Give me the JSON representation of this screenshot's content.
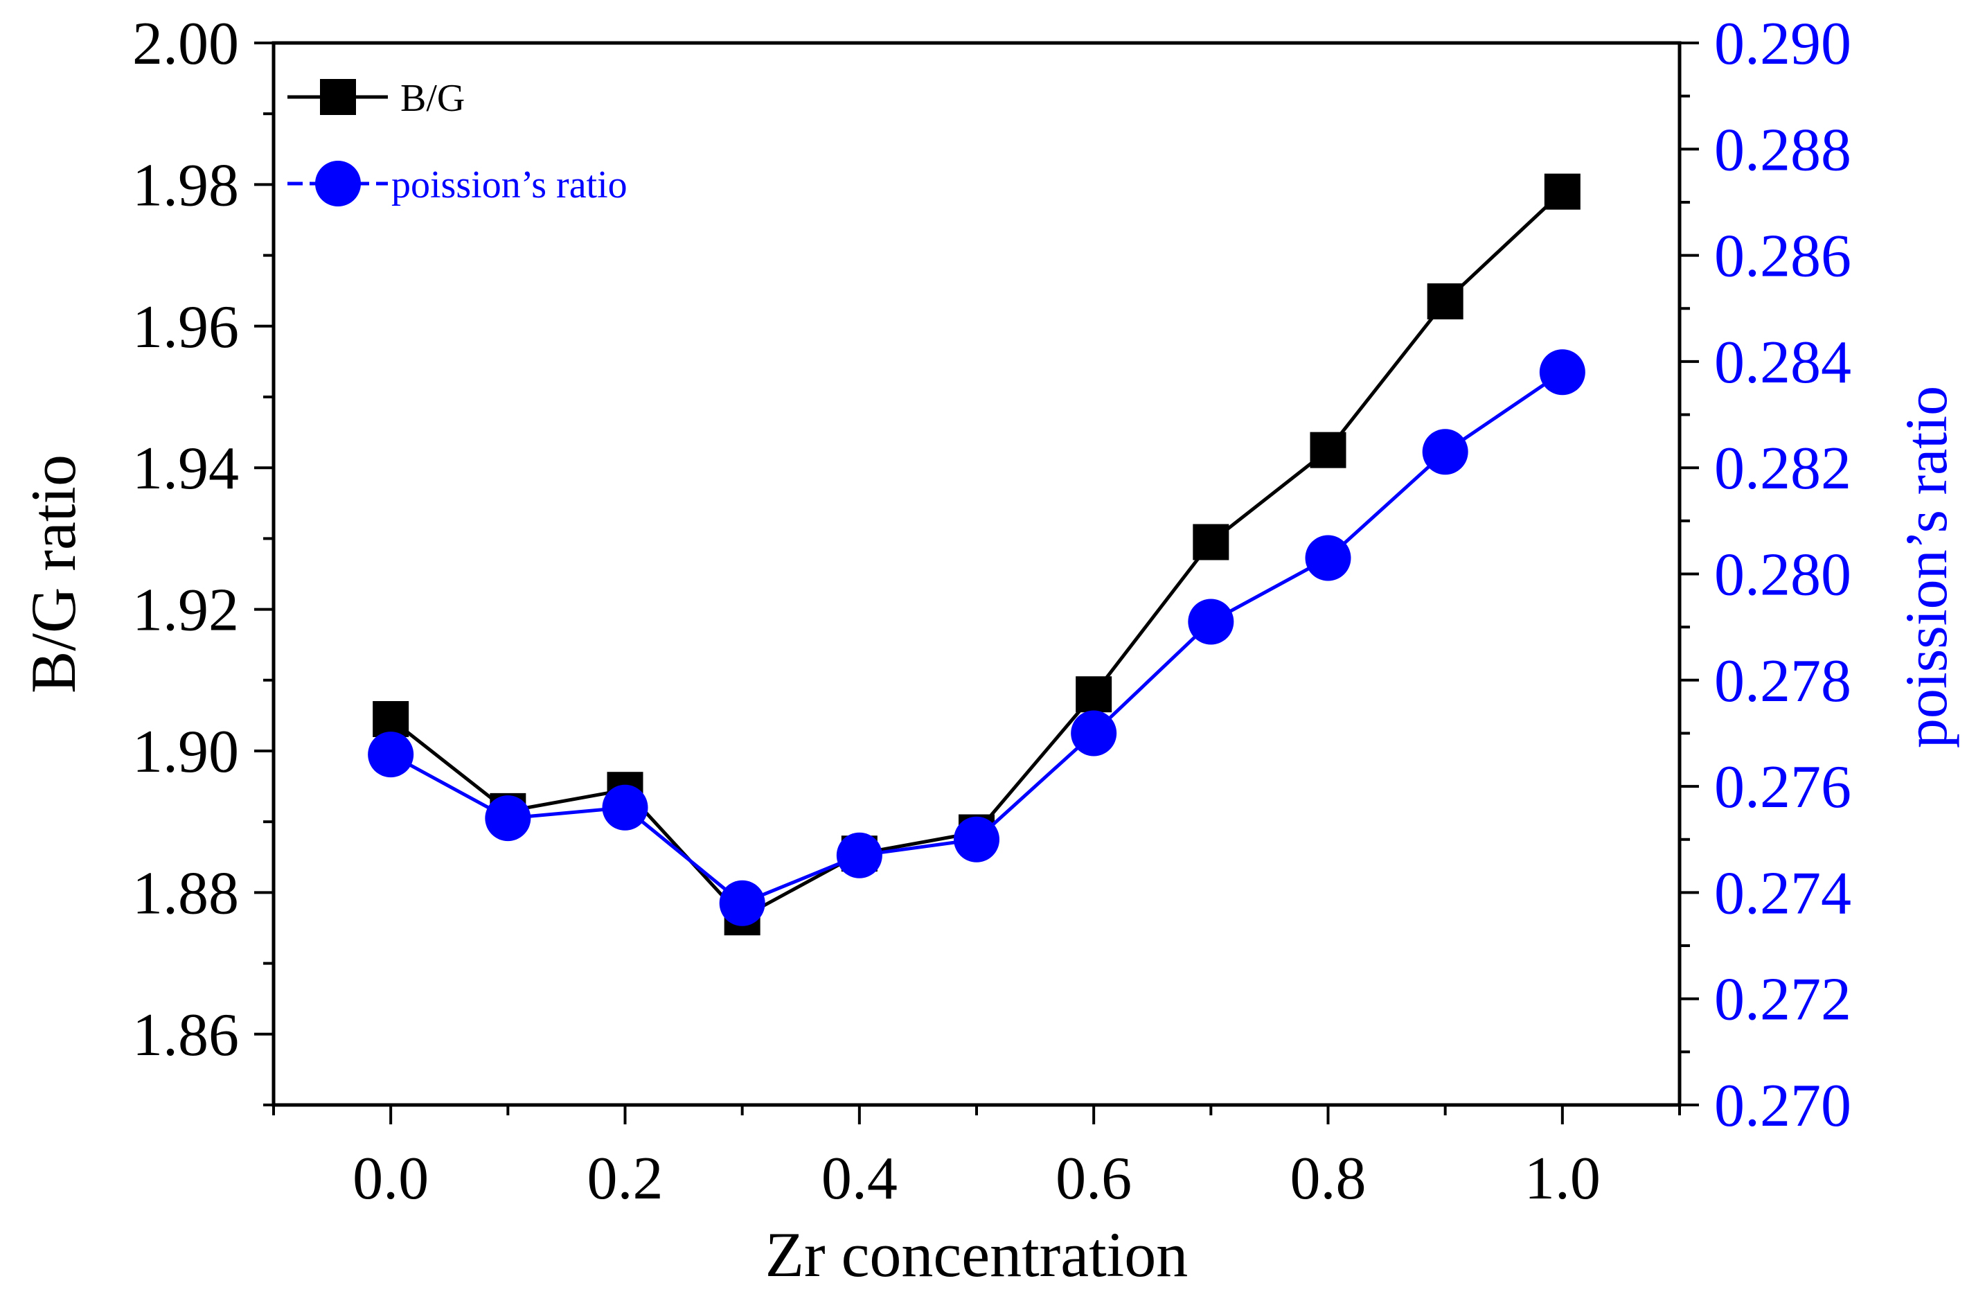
{
  "chart_data": {
    "type": "line",
    "xlabel": "Zr concentration",
    "ylabel": "B/G ratio",
    "y2label": "poission’s ratio",
    "xlim": [
      -0.1,
      1.1
    ],
    "ylim": [
      1.85,
      2.0
    ],
    "y2lim": [
      0.27,
      0.29
    ],
    "x_ticks": [
      "0.0",
      "0.2",
      "0.4",
      "0.6",
      "0.8",
      "1.0"
    ],
    "y_ticks": [
      "1.86",
      "1.88",
      "1.90",
      "1.92",
      "1.94",
      "1.96",
      "1.98",
      "2.00"
    ],
    "y2_ticks": [
      "0.270",
      "0.272",
      "0.274",
      "0.276",
      "0.278",
      "0.280",
      "0.282",
      "0.284",
      "0.286",
      "0.288",
      "0.290"
    ],
    "x": [
      0.0,
      0.1,
      0.2,
      0.3,
      0.4,
      0.5,
      0.6,
      0.7,
      0.8,
      0.9,
      1.0
    ],
    "series": [
      {
        "name": "B/G",
        "axis": "left",
        "marker": "square",
        "color": "#000000",
        "values": [
          1.9045,
          1.8915,
          1.8945,
          1.8765,
          1.8855,
          1.8885,
          1.908,
          1.9295,
          1.9425,
          1.9635,
          1.979
        ]
      },
      {
        "name": "poission’s ratio",
        "axis": "right",
        "marker": "circle",
        "color": "#0000ff",
        "values": [
          0.2766,
          0.2754,
          0.2756,
          0.2738,
          0.2747,
          0.275,
          0.277,
          0.2791,
          0.2803,
          0.2823,
          0.2838
        ]
      }
    ],
    "legend_position": "top-left",
    "grid": false
  }
}
